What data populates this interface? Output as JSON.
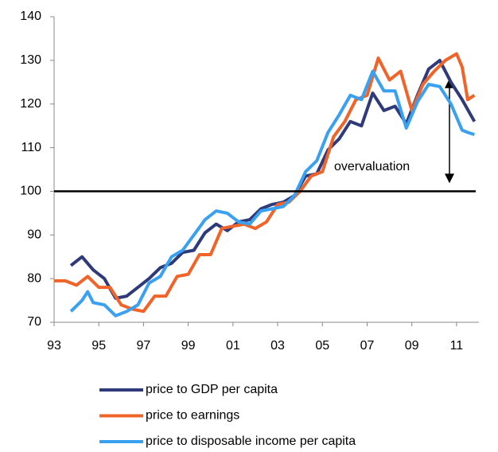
{
  "chart_data": {
    "type": "line",
    "xlim": [
      1993,
      2012
    ],
    "ylim": [
      70,
      140
    ],
    "xticks": [
      {
        "value": 1993,
        "label": "93"
      },
      {
        "value": 1995,
        "label": "95"
      },
      {
        "value": 1997,
        "label": "97"
      },
      {
        "value": 1999,
        "label": "99"
      },
      {
        "value": 2001,
        "label": "01"
      },
      {
        "value": 2003,
        "label": "03"
      },
      {
        "value": 2005,
        "label": "05"
      },
      {
        "value": 2007,
        "label": "07"
      },
      {
        "value": 2009,
        "label": "09"
      },
      {
        "value": 2011,
        "label": "11"
      }
    ],
    "yticks": [
      70,
      80,
      90,
      100,
      110,
      120,
      130,
      140
    ],
    "hline": 100,
    "annotation": "overvaluation",
    "series": [
      {
        "name": "price to GDP per capita",
        "color": "#2e3a7a",
        "x": [
          1993.75,
          1994.25,
          1994.75,
          1995.25,
          1995.75,
          1996.25,
          1996.75,
          1997.25,
          1997.75,
          1998.25,
          1998.75,
          1999.25,
          1999.75,
          2000.25,
          2000.75,
          2001.25,
          2001.75,
          2002.25,
          2002.75,
          2003.25,
          2003.75,
          2004.25,
          2004.75,
          2005.25,
          2005.75,
          2006.25,
          2006.75,
          2007.25,
          2007.75,
          2008.25,
          2008.75,
          2009.25,
          2009.75,
          2010.25,
          2010.75,
          2011.25,
          2011.8
        ],
        "values": [
          83,
          85,
          82,
          80,
          75.5,
          76,
          78,
          80,
          82.5,
          83.5,
          86,
          86.5,
          90.5,
          92.5,
          91,
          93,
          93.5,
          96,
          97,
          97.5,
          99,
          103.5,
          104,
          109.5,
          112,
          116,
          115,
          122.5,
          118.5,
          119.5,
          115.5,
          122,
          128,
          130,
          125,
          121,
          116
        ]
      },
      {
        "name": "price to earnings",
        "color": "#f0642a",
        "x": [
          1993.0,
          1993.5,
          1994.0,
          1994.5,
          1995.0,
          1995.5,
          1996.0,
          1996.5,
          1997.0,
          1997.5,
          1998.0,
          1998.5,
          1999.0,
          1999.5,
          2000.0,
          2000.5,
          2001.0,
          2001.5,
          2002.0,
          2002.5,
          2003.0,
          2003.5,
          2004.0,
          2004.5,
          2005.0,
          2005.5,
          2006.0,
          2006.5,
          2007.0,
          2007.5,
          2008.0,
          2008.5,
          2009.0,
          2009.5,
          2010.0,
          2010.5,
          2011.0,
          2011.25,
          2011.5,
          2011.8
        ],
        "values": [
          79.5,
          79.5,
          78.5,
          80.5,
          78,
          78,
          74,
          73,
          72.5,
          76,
          76,
          80.5,
          81,
          85.5,
          85.5,
          91.5,
          92,
          92.5,
          91.5,
          93,
          97,
          97.5,
          100,
          103.5,
          104.5,
          112.5,
          116,
          121,
          122,
          130.5,
          125.5,
          127.5,
          118.5,
          124.5,
          127.5,
          130,
          131.5,
          128.5,
          121,
          122
        ]
      },
      {
        "name": "price to disposable income per capita",
        "color": "#3aa0f0",
        "x": [
          1993.75,
          1994.25,
          1994.5,
          1994.75,
          1995.25,
          1995.75,
          1996.25,
          1996.75,
          1997.25,
          1997.75,
          1998.25,
          1998.75,
          1999.25,
          1999.75,
          2000.25,
          2000.75,
          2001.25,
          2001.75,
          2002.25,
          2002.75,
          2003.25,
          2003.75,
          2004.25,
          2004.75,
          2005.25,
          2005.75,
          2006.25,
          2006.75,
          2007.25,
          2007.75,
          2008.25,
          2008.75,
          2009.25,
          2009.75,
          2010.25,
          2010.75,
          2011.25,
          2011.5,
          2011.8
        ],
        "values": [
          72.5,
          75,
          77,
          74.5,
          74,
          71.5,
          72.5,
          74,
          79,
          80.5,
          85,
          86.5,
          90,
          93.5,
          95.5,
          95,
          93,
          92.5,
          95.5,
          96,
          96.5,
          99,
          104.5,
          107,
          113.5,
          117.5,
          122,
          121,
          127.5,
          123,
          123,
          114.5,
          120.5,
          124.5,
          124,
          120,
          114,
          113.5,
          113
        ]
      }
    ]
  }
}
